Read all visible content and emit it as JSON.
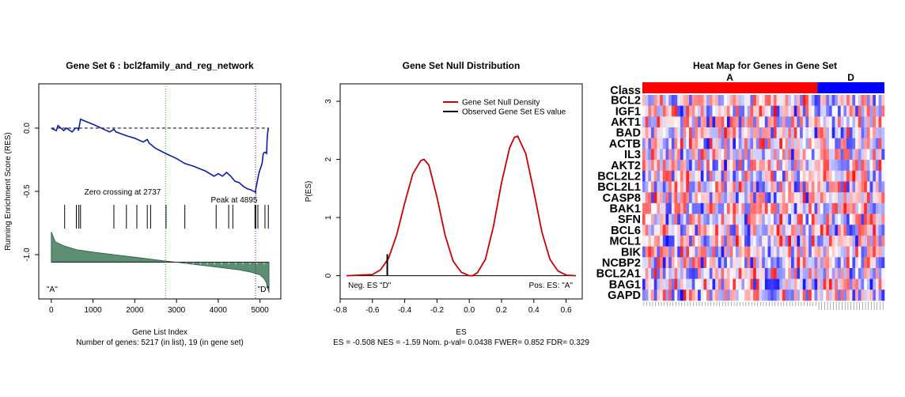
{
  "chart_data": [
    {
      "type": "line",
      "title": "Gene Set  6 : bcl2family_and_reg_network",
      "xlabel": "Gene List Index",
      "subtitle": "Number of genes: 5217 (in list), 19 (in gene set)",
      "ylabel": "Running Enrichment Score (RES)",
      "xlim": [
        -300,
        5500
      ],
      "ylim": [
        -1.35,
        0.35
      ],
      "x_ticks": [
        "0",
        "1000",
        "2000",
        "3000",
        "4000",
        "5000"
      ],
      "y_ticks": [
        "0.0",
        "-0.5",
        "-1.0"
      ],
      "annotations": {
        "zero_crossing": "Zero crossing at 2737",
        "peak": "Peak at 4895",
        "pos_end": "\"A\"",
        "neg_end": "\"D\""
      },
      "zero_crossing_x": 2737,
      "peak_x": 4895,
      "series": [
        {
          "x": [
            0,
            120,
            160,
            300,
            360,
            500,
            580,
            640,
            650,
            680,
            700,
            1000,
            1400,
            1500,
            1550,
            1800,
            2000,
            2200,
            2300,
            2350,
            2500,
            2737,
            3000,
            3200,
            3400,
            3700,
            3900,
            4000,
            4100,
            4200,
            4300,
            4400,
            4500,
            4600,
            4700,
            4800,
            4850,
            4880,
            4895,
            4900,
            4960,
            4980,
            5050,
            5080,
            5120,
            5160,
            5170,
            5180,
            5200
          ],
          "values": [
            0.0,
            -0.02,
            0.02,
            -0.02,
            0.0,
            -0.03,
            0.0,
            0.0,
            -0.02,
            0.03,
            0.07,
            0.03,
            -0.03,
            -0.01,
            -0.03,
            -0.06,
            -0.08,
            -0.11,
            -0.09,
            -0.12,
            -0.16,
            -0.2,
            -0.24,
            -0.28,
            -0.3,
            -0.34,
            -0.38,
            -0.36,
            -0.38,
            -0.35,
            -0.38,
            -0.42,
            -0.43,
            -0.46,
            -0.48,
            -0.49,
            -0.5,
            -0.5,
            -0.51,
            -0.48,
            -0.38,
            -0.35,
            -0.28,
            -0.2,
            -0.19,
            -0.2,
            -0.1,
            -0.05,
            0.0
          ]
        }
      ],
      "hits": [
        320,
        600,
        660,
        700,
        1500,
        1800,
        2050,
        2300,
        2380,
        2750,
        3200,
        3950,
        4250,
        4350,
        4880,
        4900,
        4950,
        5120,
        5200
      ],
      "ranked_metric": {
        "x": [
          0,
          100,
          300,
          600,
          1000,
          1500,
          2000,
          2737,
          3500,
          4000,
          4500,
          4800,
          5000,
          5100,
          5150,
          5217
        ],
        "values": [
          -0.82,
          -0.9,
          -0.93,
          -0.96,
          -0.98,
          -1.0,
          -1.02,
          -1.05,
          -1.08,
          -1.1,
          -1.12,
          -1.14,
          -1.16,
          -1.19,
          -1.22,
          -1.3
        ]
      },
      "metric_baseline": -1.06
    },
    {
      "type": "line",
      "title": "Gene Set Null Distribution",
      "xlabel": "ES",
      "ylabel": "P(ES)",
      "subtitle": "ES = -0.508  NES = -1.59 Nom. p-val= 0.0438 FWER= 0.852 FDR= 0.329",
      "xlim": [
        -0.8,
        0.7
      ],
      "ylim": [
        -0.4,
        3.3
      ],
      "x_ticks": [
        "-0.8",
        "-0.6",
        "-0.4",
        "-0.2",
        "0.0",
        "0.2",
        "0.4",
        "0.6"
      ],
      "y_ticks": [
        "0",
        "1",
        "2",
        "3"
      ],
      "legend": {
        "position": "top-right",
        "items": [
          "Gene Set Null Density",
          "Observed Gene Set ES value"
        ]
      },
      "annotations": {
        "neg": "Neg. ES \"D\"",
        "pos": "Pos. ES: \"A\""
      },
      "density": {
        "x": [
          -0.76,
          -0.6,
          -0.55,
          -0.5,
          -0.45,
          -0.4,
          -0.35,
          -0.3,
          -0.28,
          -0.25,
          -0.2,
          -0.15,
          -0.1,
          -0.05,
          0.0,
          0.02,
          0.05,
          0.1,
          0.15,
          0.2,
          0.25,
          0.28,
          0.3,
          0.35,
          0.4,
          0.45,
          0.5,
          0.55,
          0.6,
          0.66
        ],
        "values": [
          0.0,
          0.02,
          0.1,
          0.3,
          0.7,
          1.25,
          1.75,
          1.98,
          2.0,
          1.9,
          1.35,
          0.7,
          0.25,
          0.06,
          0.0,
          0.0,
          0.05,
          0.28,
          0.85,
          1.6,
          2.2,
          2.38,
          2.4,
          2.1,
          1.45,
          0.75,
          0.28,
          0.08,
          0.01,
          0.0
        ]
      },
      "observed_es": -0.508,
      "observed_density": 0.37,
      "colors": {
        "density": "#cc0000",
        "observed": "#000000"
      }
    },
    {
      "type": "heatmap",
      "title": "Heat Map for Genes in Gene Set",
      "class_label": "Class",
      "classes": [
        {
          "name": "A",
          "columns": 60,
          "color": "#ff0000"
        },
        {
          "name": "D",
          "columns": 23,
          "color": "#0000ff"
        }
      ],
      "rows": [
        "BCL2",
        "IGF1",
        "AKT1",
        "BAD",
        "ACTB",
        "IL3",
        "AKT2",
        "BCL2L2",
        "BCL2L1",
        "CASP8",
        "BAK1",
        "SFN",
        "BCL6",
        "MCL1",
        "BIK",
        "NCBP2",
        "BCL2A1",
        "BAG1",
        "GAPD"
      ],
      "color_scale": [
        "#0000ff",
        "#ffffff",
        "#ff0000"
      ],
      "value_range": [
        -1,
        1
      ]
    }
  ]
}
